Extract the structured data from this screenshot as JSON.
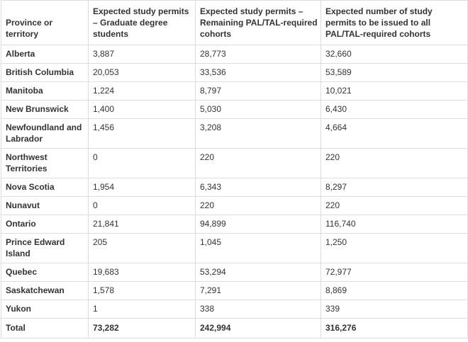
{
  "table": {
    "headers": [
      "Province or territory",
      "Expected study permits – Graduate degree students",
      "Expected study permits – Remaining PAL/TAL-required cohorts",
      "Expected number of study permits to be issued to all PAL/TAL-required cohorts"
    ],
    "rows": [
      [
        "Alberta",
        "3,887",
        "28,773",
        "32,660"
      ],
      [
        "British Columbia",
        "20,053",
        "33,536",
        "53,589"
      ],
      [
        "Manitoba",
        "1,224",
        "8,797",
        "10,021"
      ],
      [
        "New Brunswick",
        "1,400",
        "5,030",
        "6,430"
      ],
      [
        "Newfoundland and Labrador",
        "1,456",
        "3,208",
        "4,664"
      ],
      [
        "Northwest Territories",
        "0",
        "220",
        "220"
      ],
      [
        "Nova Scotia",
        "1,954",
        "6,343",
        "8,297"
      ],
      [
        "Nunavut",
        "0",
        "220",
        "220"
      ],
      [
        "Ontario",
        "21,841",
        "94,899",
        "116,740"
      ],
      [
        "Prince Edward Island",
        "205",
        "1,045",
        "1,250"
      ],
      [
        "Quebec",
        "19,683",
        "53,294",
        "72,977"
      ],
      [
        "Saskatchewan",
        "1,578",
        "7,291",
        "8,869"
      ],
      [
        "Yukon",
        "1",
        "338",
        "339"
      ]
    ],
    "total": [
      "Total",
      "73,282",
      "242,994",
      "316,276"
    ]
  }
}
